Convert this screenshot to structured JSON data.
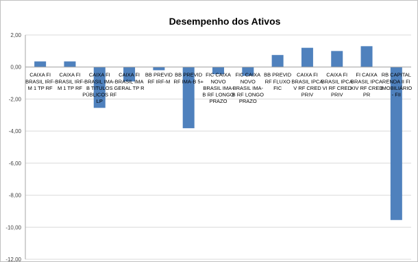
{
  "chart_data": {
    "type": "bar",
    "title": "Desempenho dos Ativos",
    "xlabel": "",
    "ylabel": "",
    "ylim": [
      -12,
      2
    ],
    "yticks": [
      "2,00",
      "0,00",
      "-2,00",
      "-4,00",
      "-6,00",
      "-8,00",
      "-10,00",
      "-12,00"
    ],
    "grid": true,
    "legend": "none",
    "bar_color": "#4f81bd",
    "categories": [
      [
        "CAIXA FI",
        "BRASIL IRF-",
        "M 1 TP RF"
      ],
      [
        "CAIXA FI",
        "BRASIL IRF-",
        "M 1 TP RF"
      ],
      [
        "CAIXA FI",
        "BRASIL IMA-",
        "B TITULOS",
        "PÚBLICOS RF",
        "LP"
      ],
      [
        "CAIXA FI",
        "BRASIL IMA",
        "GERAL TP R"
      ],
      [
        "BB PREVID",
        "RF IRF-M"
      ],
      [
        "BB PREVID",
        "RF IMA-B 5+"
      ],
      [
        "FIC CAIXA",
        "NOVO",
        "BRASIL IMA-",
        "B RF LONGO",
        "PRAZO"
      ],
      [
        "FIC CAIXA",
        "NOVO",
        "BRASIL IMA-",
        "B RF LONGO",
        "PRAZO"
      ],
      [
        "BB PREVID",
        "RF FLUXO",
        "FIC"
      ],
      [
        "CAIXA FI",
        "BRASIL IPCA",
        "V RF CRED",
        "PRIV"
      ],
      [
        "CAIXA FI",
        "BRASIL IPCA",
        "VI RF CRED",
        "PRIV"
      ],
      [
        "FI CAIXA",
        "BRASIL IPCA",
        "XIV RF CRED",
        "PR"
      ],
      [
        "RB CAPITAL",
        "RENDA II FI",
        "IMOBILIÁRIO",
        "- FII"
      ]
    ],
    "values": [
      0.35,
      0.35,
      -2.55,
      -0.9,
      -0.2,
      -3.82,
      -0.45,
      -0.55,
      0.75,
      1.2,
      1.0,
      1.3,
      -9.55
    ]
  }
}
